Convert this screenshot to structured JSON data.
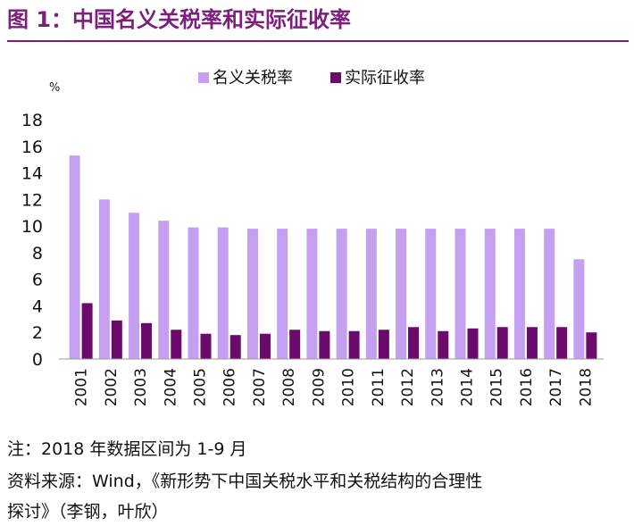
{
  "figure": {
    "title": "图 1：中国名义关税率和实际征收率"
  },
  "chart_data": {
    "type": "bar",
    "categories": [
      "2001",
      "2002",
      "2003",
      "2004",
      "2005",
      "2006",
      "2007",
      "2008",
      "2009",
      "2010",
      "2011",
      "2012",
      "2013",
      "2014",
      "2015",
      "2016",
      "2017",
      "2018"
    ],
    "series": [
      {
        "name": "名义关税率",
        "color": "#c59ff0",
        "values": [
          15.3,
          12.0,
          11.0,
          10.4,
          9.9,
          9.9,
          9.8,
          9.8,
          9.8,
          9.8,
          9.8,
          9.8,
          9.8,
          9.8,
          9.8,
          9.8,
          9.8,
          7.5
        ]
      },
      {
        "name": "实际征收率",
        "color": "#6a0a6a",
        "values": [
          4.2,
          2.9,
          2.7,
          2.2,
          1.9,
          1.8,
          1.9,
          2.2,
          2.1,
          2.1,
          2.2,
          2.4,
          2.1,
          2.3,
          2.4,
          2.4,
          2.4,
          2.0
        ]
      }
    ],
    "ylabel": "%",
    "ylim": [
      0,
      18
    ],
    "yticks": [
      "0",
      "2",
      "4",
      "6",
      "8",
      "10",
      "12",
      "14",
      "16",
      "18"
    ],
    "legend": "top-center",
    "grid": false
  },
  "notes": {
    "line1": "注：2018 年数据区间为 1-9 月",
    "line2": "资料来源：Wind，《新形势下中国关税水平和关税结构的合理性",
    "line3": "探讨》（李钢，叶欣）"
  }
}
